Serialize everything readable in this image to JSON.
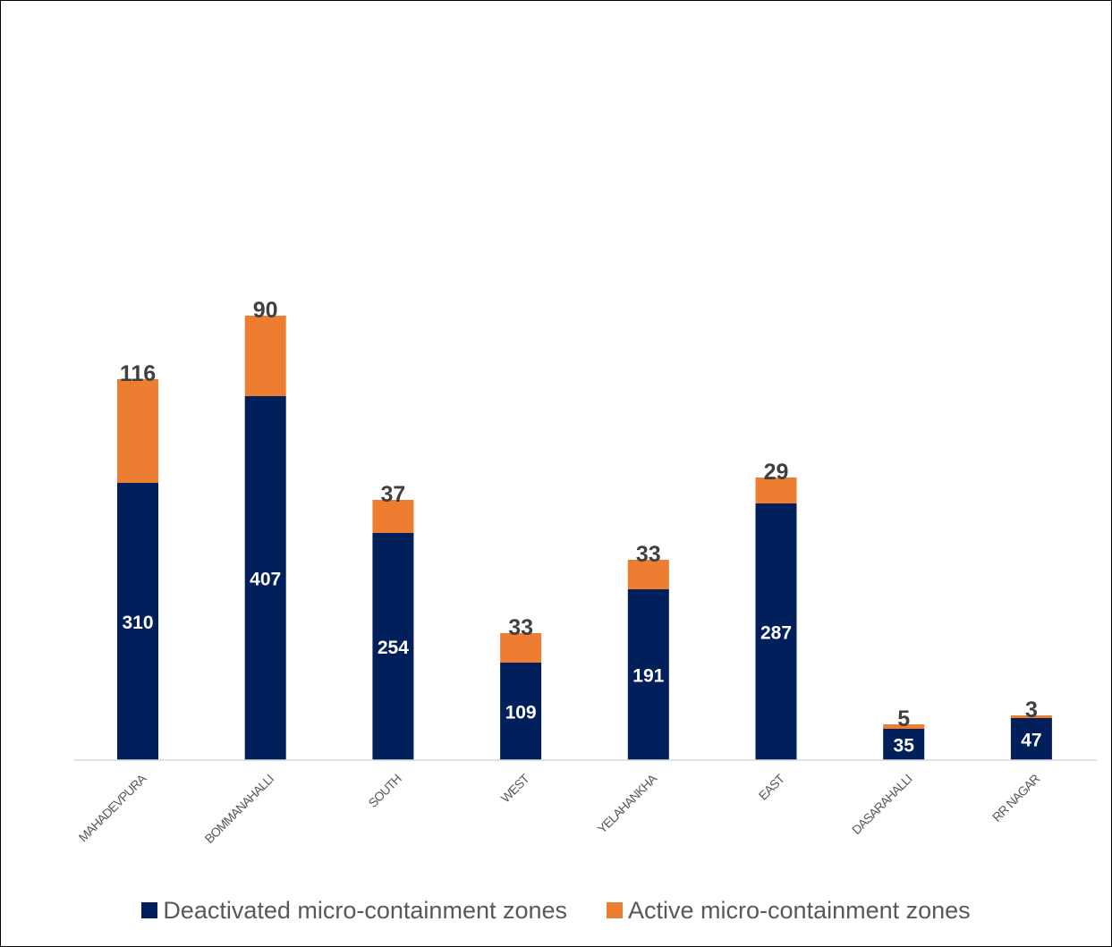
{
  "colors": {
    "deactivated": "#001f5b",
    "active": "#ed7d31",
    "axis": "#d9d9d9"
  },
  "chart_data": {
    "type": "bar",
    "stacked": true,
    "categories": [
      "MAHADEVPURA",
      "BOMMANAHALLI",
      "SOUTH",
      "WEST",
      "YELAHANKHA",
      "EAST",
      "DASARAHALLI",
      "RR NAGAR"
    ],
    "series": [
      {
        "name": "Deactivated micro-containment zones",
        "values": [
          310,
          407,
          254,
          109,
          191,
          287,
          35,
          47
        ]
      },
      {
        "name": "Active micro-containment zones",
        "values": [
          116,
          90,
          37,
          33,
          33,
          29,
          5,
          3
        ]
      }
    ],
    "ylim": [
      0,
      500
    ],
    "grid": false,
    "legend": "bottom",
    "title": "",
    "xlabel": "",
    "ylabel": ""
  },
  "legend": {
    "deactivated_label": "Deactivated micro-containment zones",
    "active_label": "Active micro-containment zones"
  }
}
